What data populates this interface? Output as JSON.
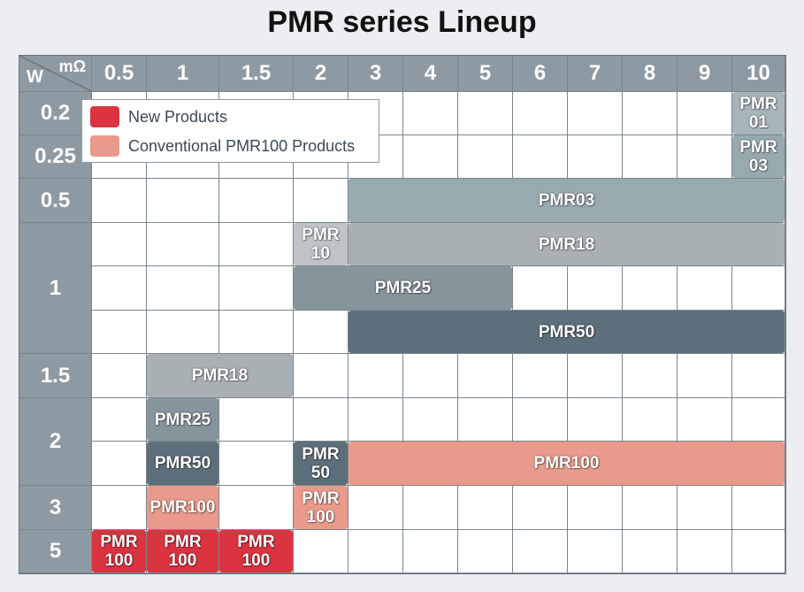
{
  "title": "PMR series Lineup",
  "colors": {
    "new": "#dc3340",
    "conventional": "#e99a8a",
    "pmr01": "#a7b4ba",
    "pmr03": "#98a9b0",
    "pmr18": "#a9b0b4",
    "pmr10": "#bdc3c7",
    "pmr25": "#86949c",
    "pmr50": "#5d6f7b",
    "header": "#8e9aa3"
  },
  "chart_data": {
    "type": "table",
    "title": "PMR series Lineup",
    "xlabel": "mΩ",
    "ylabel": "W",
    "columns": [
      "0.5",
      "1",
      "1.5",
      "2",
      "3",
      "4",
      "5",
      "6",
      "7",
      "8",
      "9",
      "10"
    ],
    "rows": [
      {
        "label": "0.2"
      },
      {
        "label": "0.25"
      },
      {
        "label": "0.5"
      },
      {
        "label": ""
      },
      {
        "label": "1"
      },
      {
        "label": ""
      },
      {
        "label": "1.5"
      },
      {
        "label": ""
      },
      {
        "label": "2"
      },
      {
        "label": "3"
      },
      {
        "label": "5"
      }
    ],
    "legend": [
      {
        "label": "New Products",
        "color": "new"
      },
      {
        "label": "Conventional PMR100 Products",
        "color": "conventional"
      }
    ],
    "bars": [
      {
        "label": "PMR\n01",
        "row": 0,
        "from": "10",
        "to": "10",
        "color": "pmr01",
        "power_W": "0.2"
      },
      {
        "label": "PMR\n03",
        "row": 1,
        "from": "10",
        "to": "10",
        "color": "pmr03",
        "power_W": "0.25"
      },
      {
        "label": "PMR03",
        "row": 2,
        "from": "3",
        "to": "10",
        "color": "pmr03",
        "power_W": "0.5"
      },
      {
        "label": "PMR\n10",
        "row": 3,
        "from": "2",
        "to": "2",
        "color": "pmr10",
        "power_W": "1"
      },
      {
        "label": "PMR18",
        "row": 3,
        "from": "3",
        "to": "10",
        "color": "pmr18",
        "power_W": "1"
      },
      {
        "label": "PMR25",
        "row": 4,
        "from": "2",
        "to": "5",
        "color": "pmr25",
        "power_W": "1"
      },
      {
        "label": "PMR50",
        "row": 5,
        "from": "3",
        "to": "10",
        "color": "pmr50",
        "power_W": "1"
      },
      {
        "label": "PMR18",
        "row": 6,
        "from": "1",
        "to": "1.5",
        "color": "pmr18",
        "power_W": "1.5"
      },
      {
        "label": "PMR25",
        "row": 7,
        "from": "1",
        "to": "1",
        "color": "pmr25",
        "power_W": "2"
      },
      {
        "label": "PMR50",
        "row": 8,
        "from": "1",
        "to": "1",
        "color": "pmr50",
        "power_W": "2"
      },
      {
        "label": "PMR\n50",
        "row": 8,
        "from": "2",
        "to": "2",
        "color": "pmr50",
        "power_W": "2"
      },
      {
        "label": "PMR100",
        "row": 8,
        "from": "3",
        "to": "10",
        "color": "conventional",
        "power_W": "2"
      },
      {
        "label": "PMR100",
        "row": 9,
        "from": "1",
        "to": "1",
        "color": "conventional",
        "power_W": "3"
      },
      {
        "label": "PMR\n100",
        "row": 9,
        "from": "2",
        "to": "2",
        "color": "conventional",
        "power_W": "3"
      },
      {
        "label": "PMR\n100",
        "row": 10,
        "from": "0.5",
        "to": "0.5",
        "color": "new",
        "power_W": "5"
      },
      {
        "label": "PMR\n100",
        "row": 10,
        "from": "1",
        "to": "1",
        "color": "new",
        "power_W": "5"
      },
      {
        "label": "PMR\n100",
        "row": 10,
        "from": "1.5",
        "to": "1.5",
        "color": "new",
        "power_W": "5"
      }
    ]
  }
}
